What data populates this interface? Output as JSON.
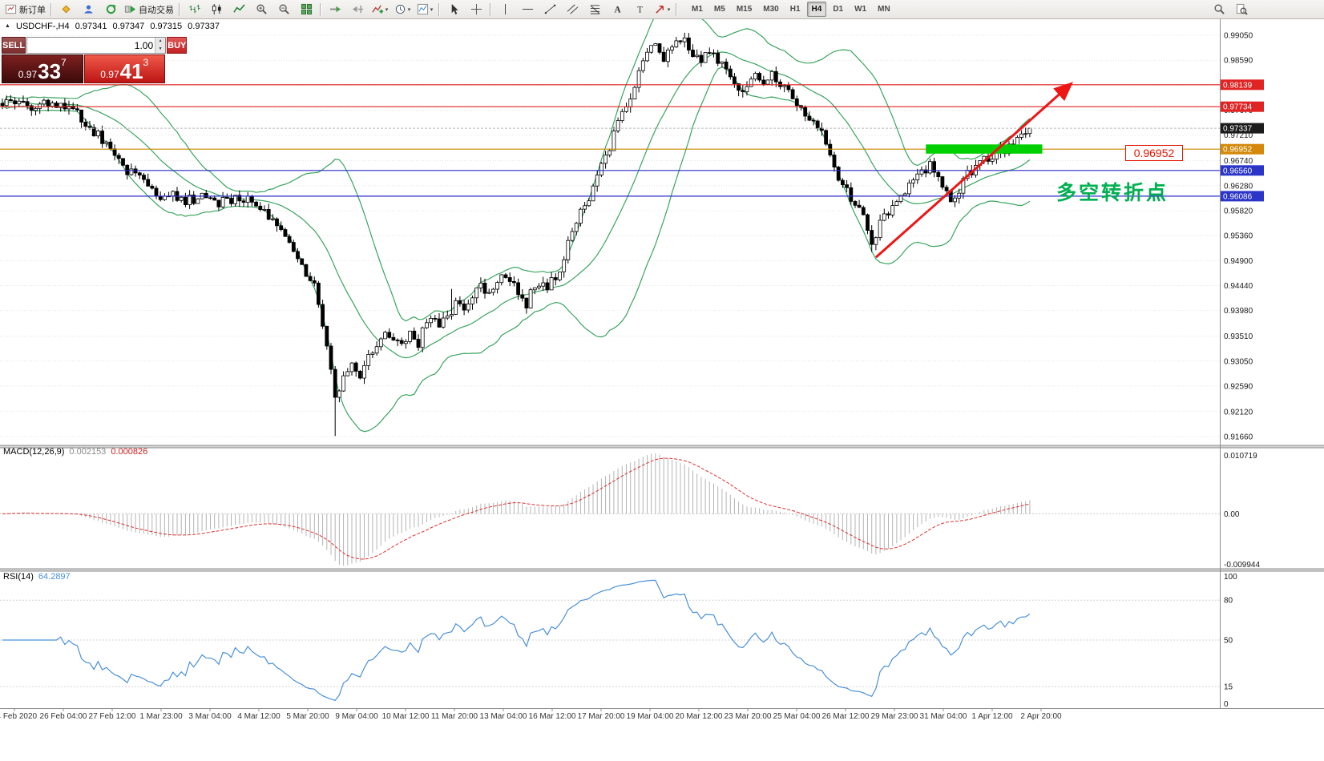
{
  "toolbar": {
    "new_order": "新订单",
    "autotrading": "自动交易",
    "timeframes": [
      "M1",
      "M5",
      "M15",
      "M30",
      "H1",
      "H4",
      "D1",
      "W1",
      "MN"
    ],
    "active_timeframe": "H4"
  },
  "symbol_header": {
    "symbol": "USDCHF-,H4",
    "open": "0.97341",
    "high": "0.97347",
    "low": "0.97315",
    "close": "0.97337"
  },
  "trade_panel": {
    "sell_label": "SELL",
    "buy_label": "BUY",
    "volume": "1.00",
    "sell_price": {
      "base": "0.97",
      "big": "33",
      "sup": "7"
    },
    "buy_price": {
      "base": "0.97",
      "big": "41",
      "sup": "3"
    }
  },
  "main_chart": {
    "y_ticks": [
      "0.99050",
      "0.98590",
      "0.98130",
      "0.97670",
      "0.97210",
      "0.96740",
      "0.96280",
      "0.95820",
      "0.95360",
      "0.94900",
      "0.94440",
      "0.93980",
      "0.93510",
      "0.93050",
      "0.92590",
      "0.92120",
      "0.91660"
    ],
    "badges": [
      {
        "text": "0.98139",
        "bg": "#df2423"
      },
      {
        "text": "0.97734",
        "bg": "#df2423"
      },
      {
        "text": "0.97337",
        "bg": "#1c1c1c"
      },
      {
        "text": "0.96952",
        "bg": "#d4890a"
      },
      {
        "text": "0.96560",
        "bg": "#2b35c8"
      },
      {
        "text": "0.96086",
        "bg": "#2b35c8"
      }
    ]
  },
  "macd_panel": {
    "label": "MACD(12,26,9)",
    "value_main": "0.002153",
    "value_signal": "0.000826",
    "axis_max": "0.010719",
    "axis_zero": "0.00",
    "axis_min": "-0.009944"
  },
  "rsi_panel": {
    "label": "RSI(14)",
    "value": "64.2897",
    "axis": [
      "100",
      "80",
      "50",
      "15",
      "0"
    ],
    "levels": [
      80,
      50,
      15
    ]
  },
  "time_axis": [
    "24 Feb 2020",
    "26 Feb 04:00",
    "27 Feb 12:00",
    "1 Mar 23:00",
    "3 Mar 04:00",
    "4 Mar 12:00",
    "5 Mar 20:00",
    "9 Mar 04:00",
    "10 Mar 12:00",
    "11 Mar 20:00",
    "13 Mar 04:00",
    "16 Mar 12:00",
    "17 Mar 20:00",
    "19 Mar 04:00",
    "20 Mar 12:00",
    "23 Mar 20:00",
    "25 Mar 04:00",
    "26 Mar 12:00",
    "29 Mar 23:00",
    "31 Mar 04:00",
    "1 Apr 12:00",
    "2 Apr 20:00"
  ],
  "chart_data": {
    "type": "candlestick",
    "symbol": "USDCHF-",
    "timeframe": "H4",
    "ohlc_current": {
      "open": 0.97341,
      "high": 0.97347,
      "low": 0.97315,
      "close": 0.97337
    },
    "bars": 248,
    "price_waypoints": [
      [
        0,
        0.9782
      ],
      [
        3,
        0.9778
      ],
      [
        5,
        0.9776
      ],
      [
        8,
        0.9772
      ],
      [
        11,
        0.978
      ],
      [
        14,
        0.9774
      ],
      [
        17,
        0.9766
      ],
      [
        19,
        0.9752
      ],
      [
        21,
        0.9736
      ],
      [
        24,
        0.9712
      ],
      [
        26,
        0.97
      ],
      [
        28,
        0.9682
      ],
      [
        30,
        0.9656
      ],
      [
        33,
        0.9641
      ],
      [
        35,
        0.9622
      ],
      [
        38,
        0.9601
      ],
      [
        41,
        0.9611
      ],
      [
        44,
        0.9601
      ],
      [
        48,
        0.9606
      ],
      [
        51,
        0.9596
      ],
      [
        55,
        0.9601
      ],
      [
        59,
        0.9606
      ],
      [
        63,
        0.9586
      ],
      [
        66,
        0.9551
      ],
      [
        68,
        0.9531
      ],
      [
        71,
        0.9501
      ],
      [
        73,
        0.9468
      ],
      [
        75,
        0.9445
      ],
      [
        77,
        0.9372
      ],
      [
        79,
        0.9292
      ],
      [
        80,
        0.924
      ],
      [
        82,
        0.9272
      ],
      [
        84,
        0.9295
      ],
      [
        86,
        0.9275
      ],
      [
        88,
        0.9312
      ],
      [
        90,
        0.933
      ],
      [
        92,
        0.9365
      ],
      [
        94,
        0.9345
      ],
      [
        96,
        0.9331
      ],
      [
        98,
        0.9352
      ],
      [
        100,
        0.9337
      ],
      [
        101,
        0.936
      ],
      [
        103,
        0.9381
      ],
      [
        105,
        0.9371
      ],
      [
        107,
        0.9386
      ],
      [
        109,
        0.9411
      ],
      [
        111,
        0.9396
      ],
      [
        113,
        0.9421
      ],
      [
        115,
        0.9441
      ],
      [
        117,
        0.9431
      ],
      [
        119,
        0.9451
      ],
      [
        121,
        0.9466
      ],
      [
        123,
        0.9441
      ],
      [
        125,
        0.9421
      ],
      [
        126,
        0.9403
      ],
      [
        127,
        0.9431
      ],
      [
        129,
        0.9451
      ],
      [
        131,
        0.9441
      ],
      [
        134,
        0.9471
      ],
      [
        136,
        0.9521
      ],
      [
        138,
        0.9561
      ],
      [
        140,
        0.9591
      ],
      [
        142,
        0.9621
      ],
      [
        144,
        0.9661
      ],
      [
        146,
        0.9701
      ],
      [
        148,
        0.9741
      ],
      [
        150,
        0.9771
      ],
      [
        152,
        0.9801
      ],
      [
        153,
        0.9841
      ],
      [
        155,
        0.9871
      ],
      [
        157,
        0.9891
      ],
      [
        159,
        0.9861
      ],
      [
        161,
        0.9881
      ],
      [
        164,
        0.9901
      ],
      [
        166,
        0.9871
      ],
      [
        168,
        0.9856
      ],
      [
        170,
        0.9881
      ],
      [
        172,
        0.9861
      ],
      [
        174,
        0.9841
      ],
      [
        176,
        0.9821
      ],
      [
        178,
        0.9801
      ],
      [
        180,
        0.9821
      ],
      [
        181,
        0.9841
      ],
      [
        183,
        0.9821
      ],
      [
        185,
        0.9831
      ],
      [
        187,
        0.9811
      ],
      [
        189,
        0.9799
      ],
      [
        191,
        0.9781
      ],
      [
        193,
        0.9758
      ],
      [
        195,
        0.9741
      ],
      [
        197,
        0.9721
      ],
      [
        199,
        0.9681
      ],
      [
        201,
        0.9641
      ],
      [
        203,
        0.9631
      ],
      [
        204,
        0.9601
      ],
      [
        206,
        0.9581
      ],
      [
        208,
        0.9551
      ],
      [
        209,
        0.9521
      ],
      [
        211,
        0.9561
      ],
      [
        213,
        0.9581
      ],
      [
        215,
        0.9601
      ],
      [
        217,
        0.9621
      ],
      [
        219,
        0.9641
      ],
      [
        221,
        0.9651
      ],
      [
        223,
        0.9666
      ],
      [
        225,
        0.9641
      ],
      [
        227,
        0.9621
      ],
      [
        228,
        0.9601
      ],
      [
        230,
        0.9621
      ],
      [
        232,
        0.9651
      ],
      [
        234,
        0.9661
      ],
      [
        236,
        0.9681
      ],
      [
        238,
        0.9671
      ],
      [
        240,
        0.9691
      ],
      [
        242,
        0.9701
      ],
      [
        244,
        0.9716
      ],
      [
        246,
        0.9726
      ],
      [
        247,
        0.97337
      ]
    ],
    "pinned_extremes": [
      {
        "bar": 80,
        "type": "low",
        "price": 0.9167
      },
      {
        "bar": 108,
        "type": "high",
        "price": 0.9438
      },
      {
        "bar": 164,
        "type": "high",
        "price": 0.99055
      },
      {
        "bar": 209,
        "type": "low",
        "price": 0.9506
      }
    ],
    "horizontal_lines": [
      {
        "price": 0.98139,
        "color": "#e02020"
      },
      {
        "price": 0.97734,
        "color": "#e02020"
      },
      {
        "price": 0.96952,
        "color": "#c88600"
      },
      {
        "price": 0.9656,
        "color": "#2828c8"
      },
      {
        "price": 0.96086,
        "color": "#2828c8"
      }
    ],
    "indicators": [
      {
        "name": "Bollinger Bands",
        "period": 20,
        "deviation": 2,
        "color": "#3aa45f"
      },
      {
        "name": "MACD",
        "fast": 12,
        "slow": 26,
        "signal": 9,
        "histogram_color": "#b4b4b4",
        "signal_color": "#e03030"
      },
      {
        "name": "RSI",
        "period": 14,
        "color": "#4a90d9"
      }
    ],
    "annotations": {
      "green_zone": {
        "bar_start": 222,
        "bar_end": 250,
        "price_top": 0.9704,
        "price_bottom": 0.9687,
        "color": "#00d000"
      },
      "trend_arrow": {
        "from_bar": 210,
        "from_price": 0.9496,
        "to_bar": 257,
        "to_price": 0.9816,
        "color": "#ee1515"
      },
      "turning_point_text": "多空转折点",
      "turning_point_color": "#00b050",
      "price_flag": "0.96952",
      "price_flag_color": "#e51400"
    }
  }
}
